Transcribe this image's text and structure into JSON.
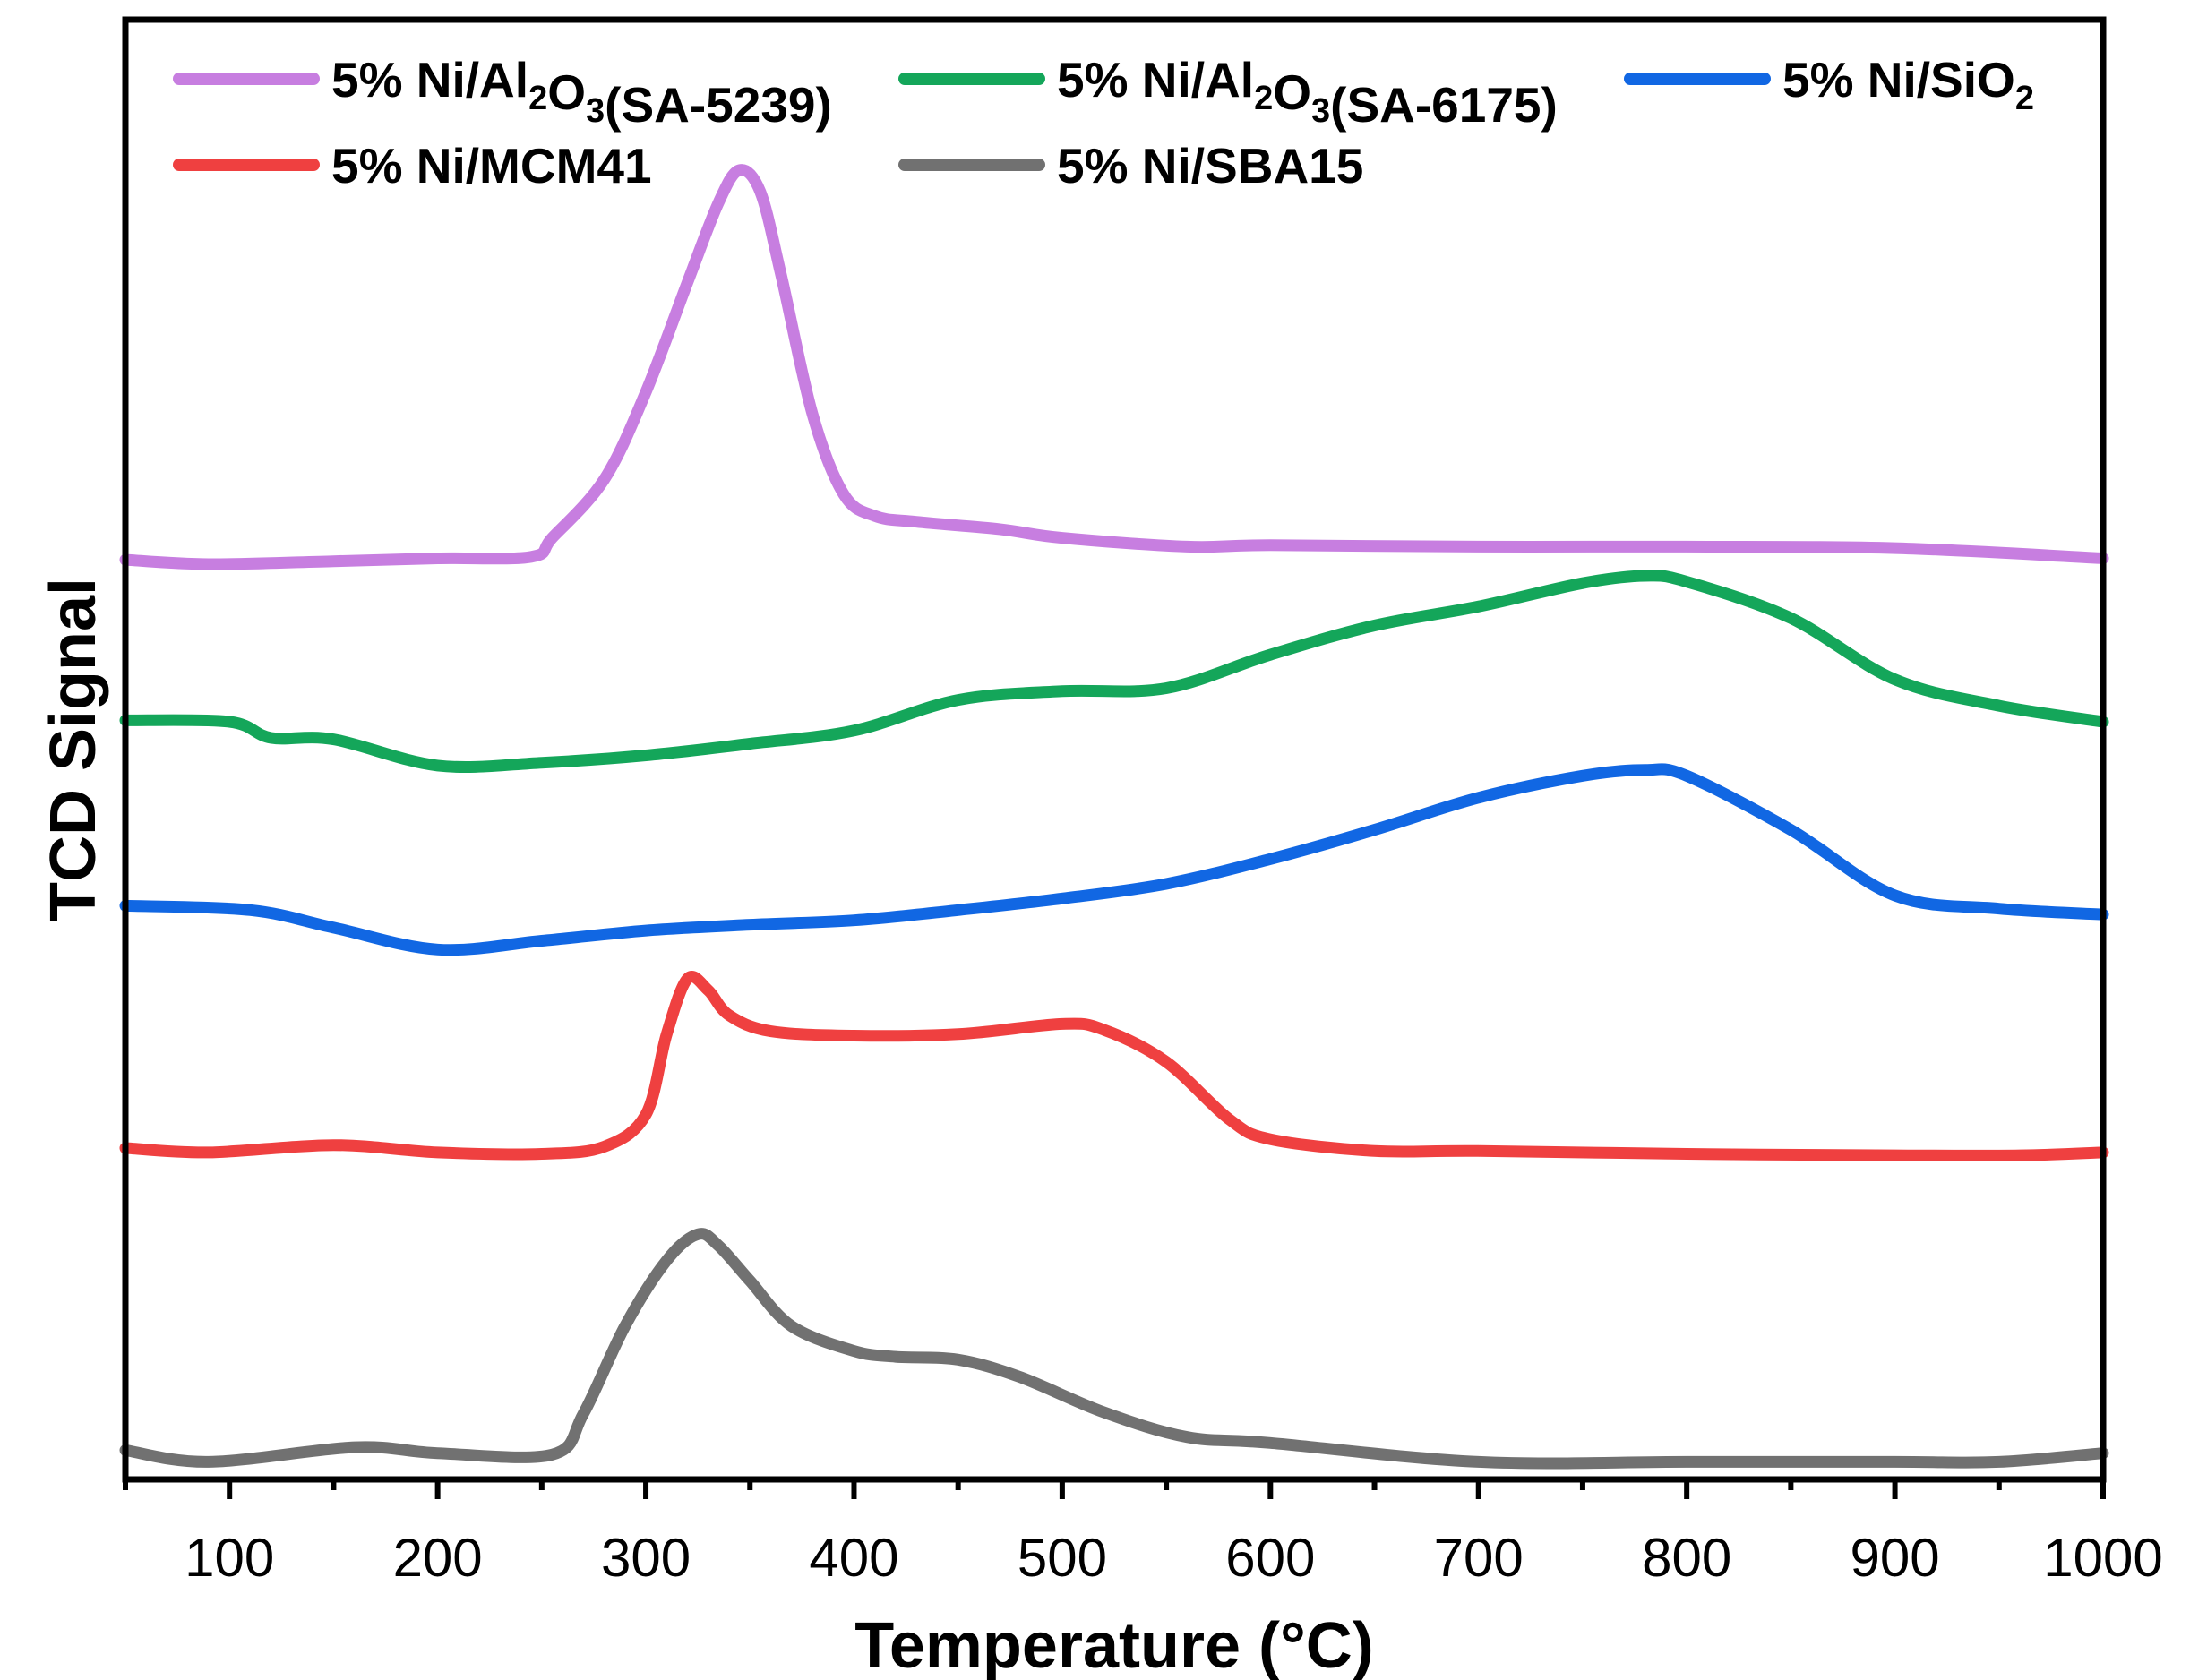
{
  "chart_data": {
    "type": "line",
    "title": "",
    "xlabel": "Temperature (°C)",
    "ylabel": "TCD Signal",
    "xlim": [
      50,
      1000
    ],
    "ylim": [
      0,
      100
    ],
    "xticks": [
      100,
      200,
      300,
      400,
      500,
      600,
      700,
      800,
      900,
      1000
    ],
    "y_ticks_shown": false,
    "legend_position": "top",
    "series": [
      {
        "name": "5% Ni/Al2O3(SA-5239)",
        "legend_parts": [
          [
            "5% Ni/Al",
            false
          ],
          [
            "2",
            true
          ],
          [
            "O",
            false
          ],
          [
            "3",
            true
          ],
          [
            "(SA-5239)",
            false
          ]
        ],
        "color": "#c77ee0",
        "x": [
          50,
          90,
          150,
          200,
          245,
          255,
          280,
          300,
          320,
          335,
          345,
          355,
          365,
          380,
          395,
          410,
          430,
          470,
          500,
          560,
          600,
          700,
          800,
          900,
          1000
        ],
        "y": [
          63.0,
          62.7,
          62.9,
          63.1,
          63.2,
          64.5,
          68.5,
          74.5,
          82.0,
          87.5,
          89.7,
          88.2,
          82.5,
          73.0,
          67.5,
          66.0,
          65.6,
          65.1,
          64.5,
          63.9,
          64.0,
          63.9,
          63.9,
          63.8,
          63.1
        ]
      },
      {
        "name": "5% Ni/Al2O3(SA-6175)",
        "legend_parts": [
          [
            "5% Ni/Al",
            false
          ],
          [
            "2",
            true
          ],
          [
            "O",
            false
          ],
          [
            "3",
            true
          ],
          [
            "(SA-6175)",
            false
          ]
        ],
        "color": "#14a65a",
        "x": [
          50,
          100,
          120,
          150,
          200,
          250,
          300,
          350,
          400,
          450,
          500,
          550,
          600,
          650,
          700,
          750,
          780,
          800,
          850,
          900,
          950,
          1000
        ],
        "y": [
          52.0,
          51.9,
          50.8,
          50.7,
          48.9,
          49.1,
          49.6,
          50.4,
          51.3,
          53.4,
          54.0,
          54.2,
          56.5,
          58.5,
          59.8,
          61.4,
          61.9,
          61.5,
          59.0,
          54.8,
          53.0,
          51.9
        ]
      },
      {
        "name": "5% Ni/SiO2",
        "legend_parts": [
          [
            "5% Ni/SiO",
            false
          ],
          [
            "2",
            true
          ]
        ],
        "color": "#1167e3",
        "x": [
          50,
          110,
          150,
          200,
          250,
          300,
          350,
          400,
          450,
          500,
          550,
          600,
          650,
          700,
          750,
          780,
          800,
          850,
          900,
          950,
          1000
        ],
        "y": [
          39.3,
          39.0,
          37.8,
          36.3,
          36.9,
          37.6,
          38.0,
          38.3,
          39.0,
          39.8,
          40.8,
          42.5,
          44.5,
          46.7,
          48.2,
          48.6,
          48.2,
          44.5,
          40.0,
          39.1,
          38.7
        ]
      },
      {
        "name": "5% Ni/MCM41",
        "legend_parts": [
          [
            "5% Ni/MCM41",
            false
          ]
        ],
        "color": "#ef4040",
        "x": [
          50,
          90,
          150,
          200,
          250,
          280,
          300,
          310,
          320,
          330,
          340,
          360,
          400,
          450,
          500,
          520,
          550,
          580,
          600,
          650,
          700,
          800,
          900,
          960,
          1000
        ],
        "y": [
          22.7,
          22.4,
          22.9,
          22.4,
          22.3,
          22.8,
          25.0,
          30.5,
          34.3,
          33.5,
          31.8,
          30.7,
          30.4,
          30.5,
          31.2,
          30.8,
          28.6,
          24.7,
          23.3,
          22.5,
          22.5,
          22.3,
          22.2,
          22.2,
          22.4
        ]
      },
      {
        "name": "5% Ni/SBA15",
        "legend_parts": [
          [
            "5% Ni/SBA15",
            false
          ]
        ],
        "color": "#717171",
        "x": [
          50,
          90,
          160,
          200,
          255,
          270,
          290,
          310,
          325,
          335,
          350,
          370,
          400,
          420,
          450,
          480,
          520,
          560,
          600,
          700,
          800,
          900,
          950,
          1000
        ],
        "y": [
          2.0,
          1.2,
          2.2,
          1.8,
          1.7,
          4.5,
          10.5,
          15.0,
          16.8,
          16.0,
          13.6,
          10.5,
          8.8,
          8.4,
          8.2,
          7.0,
          4.6,
          2.9,
          2.5,
          1.2,
          1.2,
          1.2,
          1.2,
          1.8
        ]
      }
    ]
  }
}
